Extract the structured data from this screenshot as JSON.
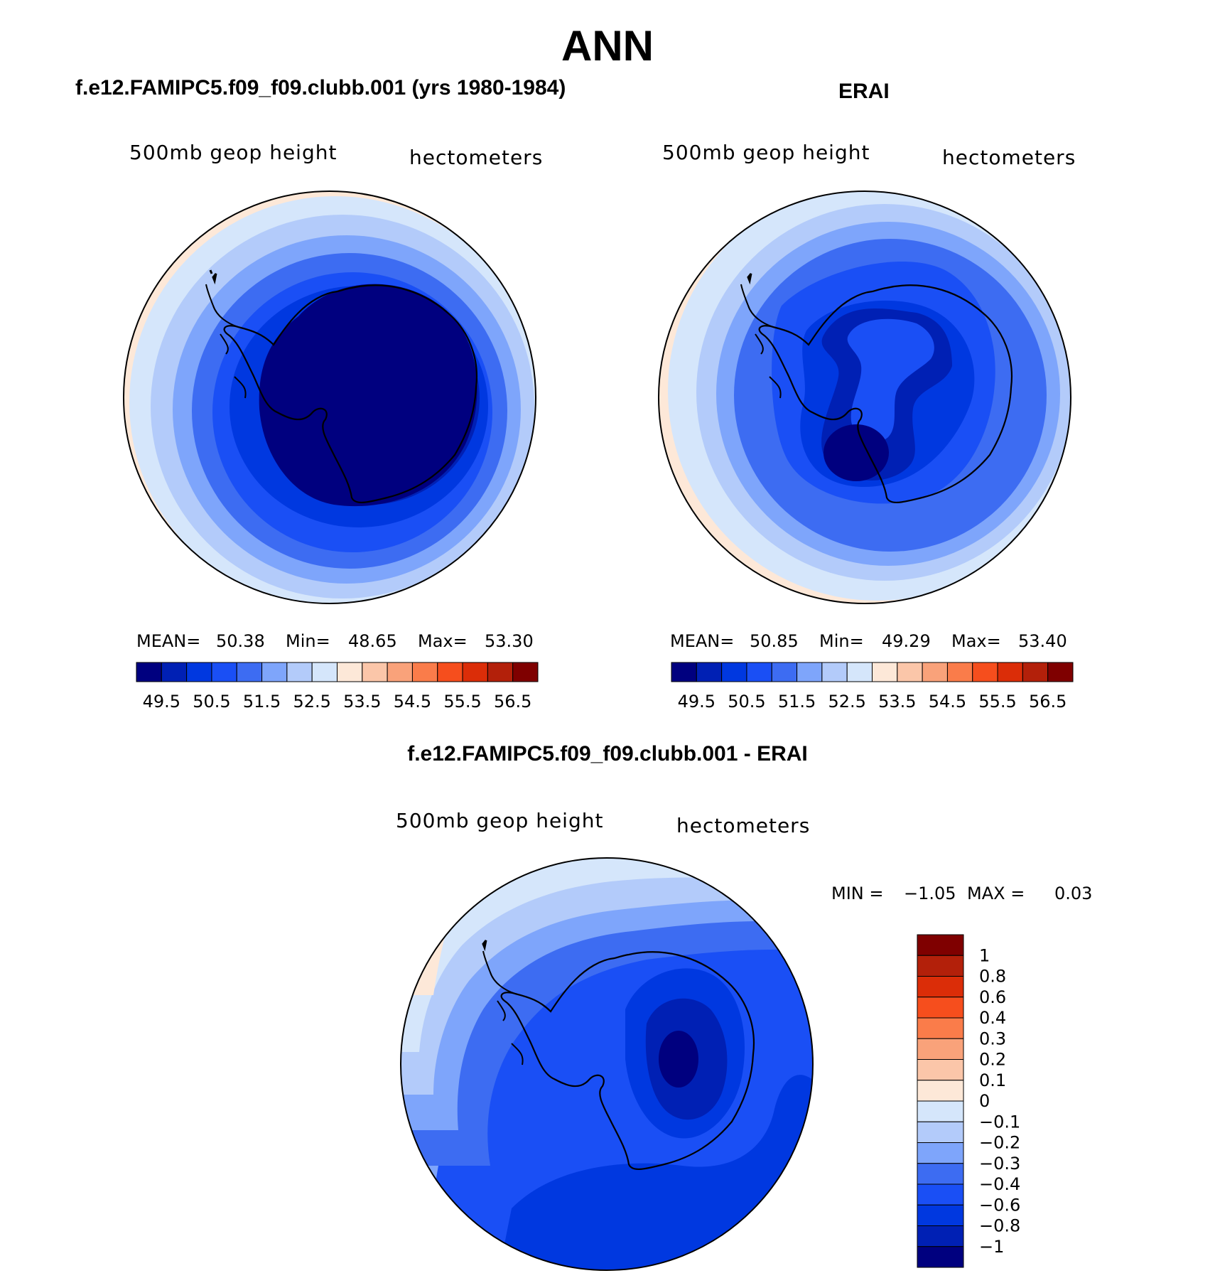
{
  "title": "ANN",
  "panels": [
    {
      "title": "f.e12.FAMIPC5.f09_f09.clubb.001 (yrs 1980-1984)",
      "variable": "500mb geop height",
      "units": "hectometers",
      "stats": {
        "mean_label": "MEAN=",
        "mean": "50.38",
        "min_label": "Min=",
        "min": "48.65",
        "max_label": "Max=",
        "max": "53.30"
      },
      "colorbar_ticks": [
        "49.5",
        "50.5",
        "51.5",
        "52.5",
        "53.5",
        "54.5",
        "55.5",
        "56.5"
      ]
    },
    {
      "title": "ERAI",
      "variable": "500mb geop height",
      "units": "hectometers",
      "stats": {
        "mean_label": "MEAN=",
        "mean": "50.85",
        "min_label": "Min=",
        "min": "49.29",
        "max_label": "Max=",
        "max": "53.40"
      },
      "colorbar_ticks": [
        "49.5",
        "50.5",
        "51.5",
        "52.5",
        "53.5",
        "54.5",
        "55.5",
        "56.5"
      ]
    },
    {
      "title": "f.e12.FAMIPC5.f09_f09.clubb.001 - ERAI",
      "variable": "500mb geop height",
      "units": "hectometers",
      "stats": {
        "min_label": "MIN =",
        "min": "−1.05",
        "max_label": "MAX =",
        "max": "0.03"
      },
      "colorbar_ticks": [
        "1",
        "0.8",
        "0.6",
        "0.4",
        "0.3",
        "0.2",
        "0.1",
        "0",
        "−0.1",
        "−0.2",
        "−0.3",
        "−0.4",
        "−0.6",
        "−0.8",
        "−1"
      ]
    }
  ],
  "palette": [
    "#00007f",
    "#0020b4",
    "#0038e0",
    "#1a4ff5",
    "#3d6cf2",
    "#7ea5fb",
    "#b3cbfa",
    "#d5e6fb",
    "#fde8d8",
    "#fbc6a9",
    "#f9a27a",
    "#fa7c4a",
    "#f64e1d",
    "#db2d08",
    "#b3200a",
    "#7f0000"
  ],
  "chart_data": [
    {
      "type": "heatmap",
      "title": "f.e12.FAMIPC5.f09_f09.clubb.001 (yrs 1980-1984)",
      "description_fields": {
        "variable": "500mb geop height",
        "units": "hectometers"
      },
      "projection": "south polar stereographic",
      "mean": 50.38,
      "min": 48.65,
      "max": 53.3,
      "contour_levels": [
        49.5,
        50,
        50.5,
        51,
        51.5,
        52,
        52.5,
        53,
        53.5,
        54,
        54.5,
        55,
        55.5,
        56,
        56.5
      ],
      "legend": "colorbar-bottom"
    },
    {
      "type": "heatmap",
      "title": "ERAI",
      "description_fields": {
        "variable": "500mb geop height",
        "units": "hectometers"
      },
      "projection": "south polar stereographic",
      "mean": 50.85,
      "min": 49.29,
      "max": 53.4,
      "contour_levels": [
        49.5,
        50,
        50.5,
        51,
        51.5,
        52,
        52.5,
        53,
        53.5,
        54,
        54.5,
        55,
        55.5,
        56,
        56.5
      ],
      "legend": "colorbar-bottom"
    },
    {
      "type": "heatmap",
      "title": "f.e12.FAMIPC5.f09_f09.clubb.001 - ERAI",
      "description_fields": {
        "variable": "500mb geop height",
        "units": "hectometers"
      },
      "projection": "south polar stereographic",
      "min": -1.05,
      "max": 0.03,
      "contour_levels": [
        -1,
        -0.8,
        -0.6,
        -0.4,
        -0.3,
        -0.2,
        -0.1,
        0,
        0.1,
        0.2,
        0.3,
        0.4,
        0.6,
        0.8,
        1
      ],
      "legend": "colorbar-right"
    }
  ]
}
